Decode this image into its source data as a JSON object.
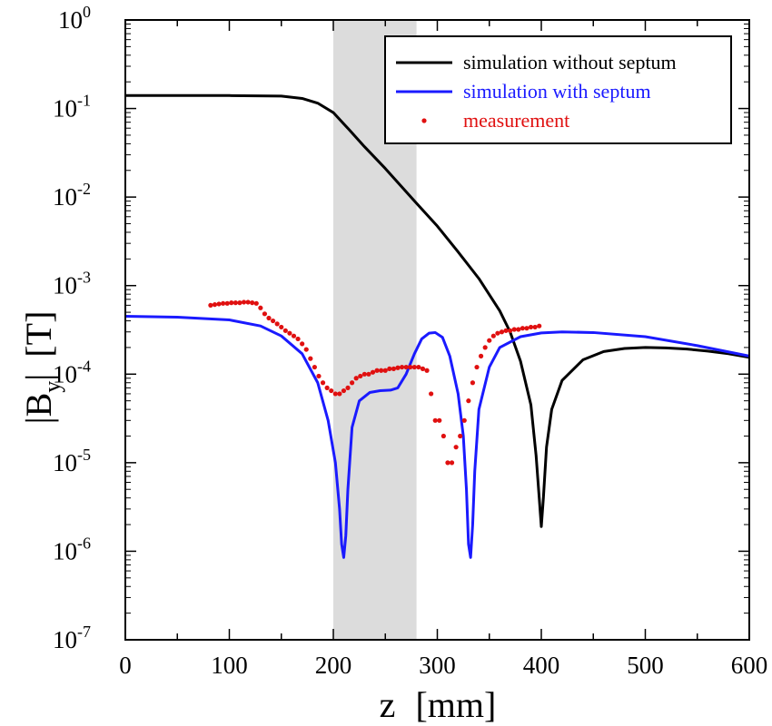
{
  "chart_data": {
    "type": "line",
    "xlabel_main": "z",
    "xlabel_unit": "[mm]",
    "ylabel_main": "|B",
    "ylabel_sub": "y",
    "ylabel_tail": "|",
    "ylabel_unit": "[T]",
    "xlim": [
      0,
      600
    ],
    "ylim": [
      1e-07,
      1
    ],
    "yscale": "log",
    "grid": false,
    "legend_position": "top-right",
    "shaded_region": {
      "x": [
        200,
        280
      ],
      "color": "#dcdcdc"
    },
    "x_ticks": [
      {
        "value": 0,
        "label": "0"
      },
      {
        "value": 100,
        "label": "100"
      },
      {
        "value": 200,
        "label": "200"
      },
      {
        "value": 300,
        "label": "300"
      },
      {
        "value": 400,
        "label": "400"
      },
      {
        "value": 500,
        "label": "500"
      },
      {
        "value": 600,
        "label": "600"
      }
    ],
    "y_ticks": [
      {
        "value": 1,
        "base": "10",
        "exp": "0"
      },
      {
        "value": 0.1,
        "base": "10",
        "exp": "-1"
      },
      {
        "value": 0.01,
        "base": "10",
        "exp": "-2"
      },
      {
        "value": 0.001,
        "base": "10",
        "exp": "-3"
      },
      {
        "value": 0.0001,
        "base": "10",
        "exp": "-4"
      },
      {
        "value": 1e-05,
        "base": "10",
        "exp": "-5"
      },
      {
        "value": 1e-06,
        "base": "10",
        "exp": "-6"
      },
      {
        "value": 1e-07,
        "base": "10",
        "exp": "-7"
      }
    ],
    "series": [
      {
        "name": "simulation without septum",
        "style": "line",
        "color": "#000000",
        "x": [
          0,
          50,
          100,
          150,
          170,
          185,
          200,
          215,
          230,
          250,
          280,
          300,
          320,
          340,
          360,
          370,
          380,
          390,
          395,
          398,
          400,
          402,
          405,
          410,
          420,
          440,
          460,
          480,
          500,
          520,
          540,
          560,
          580,
          600
        ],
        "y": [
          0.14,
          0.14,
          0.14,
          0.138,
          0.13,
          0.115,
          0.09,
          0.058,
          0.037,
          0.021,
          0.0085,
          0.0047,
          0.0024,
          0.0012,
          0.00052,
          0.0003,
          0.00014,
          4.5e-05,
          1.2e-05,
          4e-06,
          1.9e-06,
          4e-06,
          1.5e-05,
          4e-05,
          8.5e-05,
          0.000145,
          0.00018,
          0.000195,
          0.0002,
          0.000198,
          0.000192,
          0.000182,
          0.00017,
          0.000155
        ]
      },
      {
        "name": "simulation with septum",
        "style": "line",
        "color": "#1a1aff",
        "x": [
          0,
          50,
          100,
          130,
          150,
          170,
          185,
          195,
          202,
          206,
          208,
          210,
          212,
          214,
          218,
          225,
          235,
          245,
          255,
          262,
          270,
          278,
          285,
          292,
          298,
          305,
          312,
          320,
          325,
          328,
          330,
          332,
          334,
          336,
          340,
          350,
          360,
          380,
          400,
          420,
          450,
          500,
          550,
          600
        ],
        "y": [
          0.00045,
          0.00044,
          0.00041,
          0.00035,
          0.00027,
          0.00017,
          8e-05,
          3e-05,
          1e-05,
          3e-06,
          1.2e-06,
          8.5e-07,
          1.5e-06,
          5e-06,
          2.5e-05,
          5e-05,
          6.2e-05,
          6.5e-05,
          6.6e-05,
          7e-05,
          0.0001,
          0.00017,
          0.00025,
          0.00029,
          0.000295,
          0.00026,
          0.00016,
          6e-05,
          2e-05,
          5e-06,
          1.2e-06,
          8.5e-07,
          2e-06,
          8e-06,
          4e-05,
          0.00012,
          0.0002,
          0.000265,
          0.000292,
          0.0003,
          0.000295,
          0.000265,
          0.00021,
          0.00016
        ]
      },
      {
        "name": "measurement",
        "style": "points",
        "color": "#e01010",
        "x": [
          82,
          86,
          90,
          94,
          98,
          102,
          106,
          110,
          114,
          118,
          122,
          126,
          130,
          134,
          138,
          142,
          146,
          150,
          154,
          158,
          162,
          166,
          170,
          174,
          178,
          182,
          186,
          190,
          194,
          198,
          202,
          206,
          210,
          214,
          218,
          222,
          226,
          230,
          234,
          238,
          242,
          246,
          250,
          254,
          258,
          262,
          266,
          270,
          274,
          278,
          282,
          286,
          290,
          294,
          298,
          302,
          306,
          310,
          314,
          318,
          322,
          326,
          330,
          334,
          338,
          342,
          346,
          350,
          354,
          358,
          362,
          366,
          370,
          374,
          378,
          382,
          386,
          390,
          394,
          398
        ],
        "y": [
          0.0006,
          0.00061,
          0.00062,
          0.00063,
          0.00063,
          0.00064,
          0.00064,
          0.00064,
          0.00065,
          0.00065,
          0.00064,
          0.00063,
          0.00056,
          0.00048,
          0.00043,
          0.0004,
          0.00037,
          0.00034,
          0.00031,
          0.00029,
          0.00027,
          0.00025,
          0.00022,
          0.00019,
          0.00015,
          0.00012,
          9.5e-05,
          8e-05,
          7e-05,
          6.5e-05,
          6e-05,
          6e-05,
          6.5e-05,
          7e-05,
          8e-05,
          9e-05,
          9.5e-05,
          0.0001,
          0.0001,
          0.000105,
          0.00011,
          0.00011,
          0.00011,
          0.000115,
          0.000115,
          0.000118,
          0.00012,
          0.00012,
          0.00012,
          0.00012,
          0.00012,
          0.000115,
          0.00011,
          6e-05,
          3e-05,
          3e-05,
          2e-05,
          1e-05,
          1e-05,
          1.5e-05,
          2e-05,
          3e-05,
          5e-05,
          8e-05,
          0.00012,
          0.00016,
          0.0002,
          0.00024,
          0.00027,
          0.00029,
          0.0003,
          0.00031,
          0.00031,
          0.00032,
          0.00032,
          0.00033,
          0.00033,
          0.00034,
          0.00034,
          0.00035
        ]
      }
    ]
  }
}
